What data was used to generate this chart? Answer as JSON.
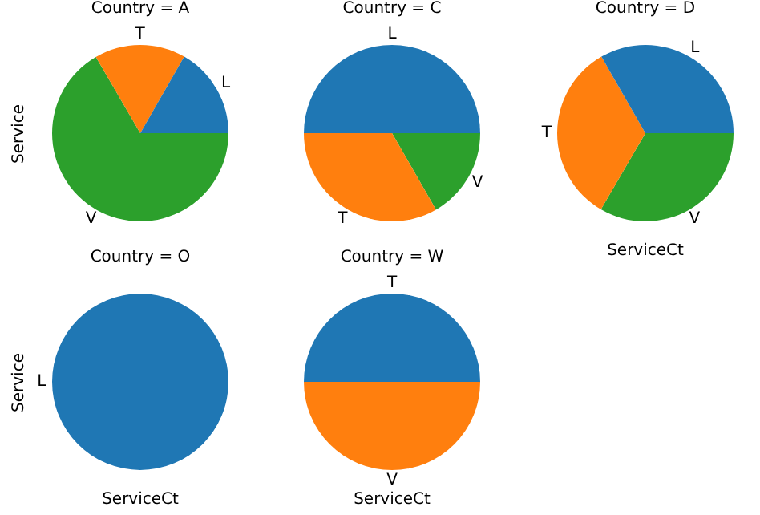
{
  "chart_data": [
    {
      "type": "pie",
      "title": "Country = A",
      "ylabel": "Service",
      "categories": [
        "L",
        "T",
        "V"
      ],
      "values": [
        16.7,
        16.7,
        66.6
      ],
      "colors": [
        "#1f77b4",
        "#ff7f0e",
        "#2ca02c"
      ]
    },
    {
      "type": "pie",
      "title": "Country = C",
      "categories": [
        "L",
        "T",
        "V"
      ],
      "values": [
        50,
        33.3,
        16.7
      ],
      "colors": [
        "#1f77b4",
        "#ff7f0e",
        "#2ca02c"
      ]
    },
    {
      "type": "pie",
      "title": "Country = D",
      "xlabel": "ServiceCt",
      "categories": [
        "L",
        "T",
        "V"
      ],
      "values": [
        33.3,
        33.3,
        33.4
      ],
      "colors": [
        "#1f77b4",
        "#ff7f0e",
        "#2ca02c"
      ]
    },
    {
      "type": "pie",
      "title": "Country = O",
      "ylabel": "Service",
      "xlabel": "ServiceCt",
      "categories": [
        "L"
      ],
      "values": [
        100
      ],
      "colors": [
        "#1f77b4"
      ]
    },
    {
      "type": "pie",
      "title": "Country = W",
      "xlabel": "ServiceCt",
      "categories": [
        "T",
        "V"
      ],
      "values": [
        50,
        50
      ],
      "colors": [
        "#1f77b4",
        "#ff7f0e"
      ]
    }
  ]
}
